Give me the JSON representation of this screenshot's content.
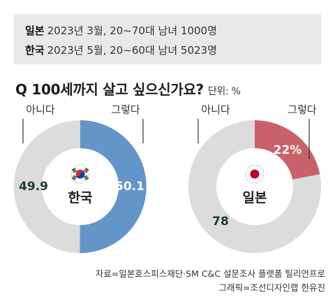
{
  "survey": {
    "japan": {
      "label": "일본",
      "detail": "2023년 3월, 20~70대 남녀 1000명"
    },
    "korea": {
      "label": "한국",
      "detail": "2023년 5월, 20~60대 남녀 5023명"
    }
  },
  "question": {
    "text": "Q 100세까지 살고 싶으신가요?",
    "unit": "단위: %"
  },
  "chart_data": [
    {
      "type": "pie",
      "title": "한국",
      "flag": "korea-flag-icon",
      "categories": [
        "아니다",
        "그렇다"
      ],
      "values": [
        49.9,
        50.1
      ],
      "value_labels": [
        "49.9",
        "50.1"
      ],
      "colors": {
        "그렇다": "#6495c8",
        "아니다": "#dcdcdc"
      }
    },
    {
      "type": "pie",
      "title": "일본",
      "flag": "japan-flag-icon",
      "categories": [
        "아니다",
        "그렇다"
      ],
      "values": [
        78,
        22
      ],
      "value_labels": [
        "78",
        "22%"
      ],
      "colors": {
        "그렇다": "#c9616b",
        "아니다": "#dcdcdc"
      }
    }
  ],
  "source": {
    "line1": "자료=일본호스피스재단·SM C&C 설문조사 플랫폼 틸리언프로",
    "line2": "그래픽=조선디자인랩 한유진"
  }
}
